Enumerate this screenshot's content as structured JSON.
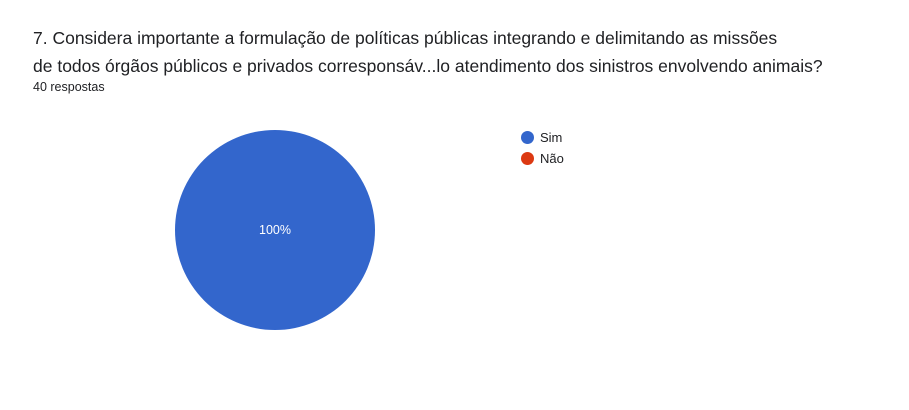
{
  "question": {
    "title_line1": "7. Considera importante a formulação de políticas públicas integrando e delimitando as missões",
    "title_line2": "de todos órgãos públicos e privados corresponsáv...lo atendimento dos sinistros envolvendo animais?",
    "responses": "40 respostas"
  },
  "colors": {
    "sim": "#3366cc",
    "nao": "#dc3912"
  },
  "chart_data": {
    "type": "pie",
    "title": "",
    "legend_position": "right",
    "categories": [
      "Sim",
      "Não"
    ],
    "values": [
      40,
      0
    ],
    "percentages": [
      100,
      0
    ],
    "data_labels": [
      "100%",
      ""
    ],
    "colors": [
      "#3366cc",
      "#dc3912"
    ]
  }
}
